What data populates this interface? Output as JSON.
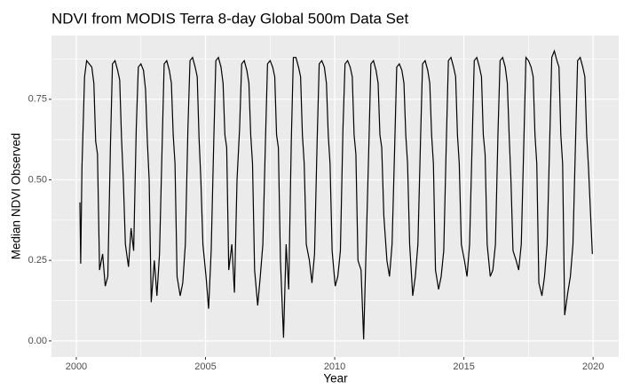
{
  "chart_data": {
    "type": "line",
    "title": "NDVI from MODIS Terra 8-day Global 500m Data Set",
    "x_label": "Year",
    "y_label": "Median NDVI Observed",
    "xlim": [
      1999.04,
      2020.99
    ],
    "ylim": [
      -0.05,
      0.948
    ],
    "xticks": [
      2000,
      2005,
      2010,
      2015,
      2020
    ],
    "xminor": [
      2002.5,
      2007.5,
      2012.5,
      2017.5
    ],
    "yticks": [
      {
        "value": 0,
        "label": "0.00"
      },
      {
        "value": 0.25,
        "label": "0.25"
      },
      {
        "value": 0.5,
        "label": "0.50"
      },
      {
        "value": 0.75,
        "label": "0.75"
      }
    ],
    "yminor": [
      0.125,
      0.375,
      0.625,
      0.875
    ],
    "grid": true,
    "series": [
      {
        "color": "#000000",
        "x": [
          2000.14,
          2000.17,
          2000.22,
          2000.32,
          2000.4,
          2000.5,
          2000.6,
          2000.68,
          2000.75,
          2000.82,
          2000.9,
          2001.02,
          2001.12,
          2001.22,
          2001.32,
          2001.4,
          2001.5,
          2001.6,
          2001.68,
          2001.75,
          2001.82,
          2001.9,
          2002.02,
          2002.12,
          2002.22,
          2002.32,
          2002.4,
          2002.5,
          2002.6,
          2002.68,
          2002.75,
          2002.82,
          2002.9,
          2003.02,
          2003.12,
          2003.22,
          2003.32,
          2003.4,
          2003.5,
          2003.6,
          2003.68,
          2003.75,
          2003.82,
          2003.9,
          2004.02,
          2004.12,
          2004.22,
          2004.32,
          2004.4,
          2004.5,
          2004.6,
          2004.68,
          2004.75,
          2004.82,
          2004.9,
          2005.02,
          2005.12,
          2005.22,
          2005.32,
          2005.4,
          2005.5,
          2005.6,
          2005.68,
          2005.75,
          2005.82,
          2005.9,
          2006.02,
          2006.12,
          2006.22,
          2006.32,
          2006.4,
          2006.5,
          2006.6,
          2006.68,
          2006.75,
          2006.82,
          2006.9,
          2007.02,
          2007.12,
          2007.22,
          2007.32,
          2007.4,
          2007.5,
          2007.6,
          2007.68,
          2007.75,
          2007.82,
          2007.9,
          2008.02,
          2008.12,
          2008.22,
          2008.32,
          2008.4,
          2008.5,
          2008.6,
          2008.68,
          2008.75,
          2008.82,
          2008.9,
          2009.02,
          2009.12,
          2009.22,
          2009.32,
          2009.4,
          2009.5,
          2009.6,
          2009.68,
          2009.75,
          2009.82,
          2009.9,
          2010.02,
          2010.12,
          2010.22,
          2010.32,
          2010.4,
          2010.5,
          2010.6,
          2010.68,
          2010.75,
          2010.82,
          2010.9,
          2011.02,
          2011.12,
          2011.22,
          2011.32,
          2011.4,
          2011.5,
          2011.6,
          2011.68,
          2011.75,
          2011.82,
          2011.9,
          2012.02,
          2012.12,
          2012.22,
          2012.32,
          2012.4,
          2012.5,
          2012.6,
          2012.68,
          2012.75,
          2012.82,
          2012.9,
          2013.02,
          2013.12,
          2013.22,
          2013.32,
          2013.4,
          2013.5,
          2013.6,
          2013.68,
          2013.75,
          2013.82,
          2013.9,
          2014.02,
          2014.12,
          2014.22,
          2014.32,
          2014.4,
          2014.5,
          2014.6,
          2014.68,
          2014.75,
          2014.82,
          2014.9,
          2015.02,
          2015.12,
          2015.22,
          2015.32,
          2015.4,
          2015.5,
          2015.6,
          2015.68,
          2015.75,
          2015.82,
          2015.9,
          2016.02,
          2016.12,
          2016.22,
          2016.32,
          2016.4,
          2016.5,
          2016.6,
          2016.68,
          2016.75,
          2016.82,
          2016.9,
          2017.02,
          2017.12,
          2017.22,
          2017.32,
          2017.4,
          2017.5,
          2017.6,
          2017.68,
          2017.75,
          2017.82,
          2017.9,
          2018.02,
          2018.12,
          2018.22,
          2018.32,
          2018.4,
          2018.5,
          2018.6,
          2018.68,
          2018.75,
          2018.82,
          2018.9,
          2019.02,
          2019.12,
          2019.22,
          2019.32,
          2019.4,
          2019.5,
          2019.6,
          2019.68,
          2019.75,
          2019.82,
          2019.97
        ],
        "values": [
          0.43,
          0.24,
          0.54,
          0.82,
          0.87,
          0.86,
          0.85,
          0.8,
          0.62,
          0.58,
          0.22,
          0.27,
          0.17,
          0.2,
          0.6,
          0.86,
          0.87,
          0.84,
          0.81,
          0.63,
          0.5,
          0.3,
          0.23,
          0.35,
          0.28,
          0.66,
          0.85,
          0.86,
          0.84,
          0.78,
          0.62,
          0.5,
          0.12,
          0.25,
          0.14,
          0.27,
          0.6,
          0.86,
          0.87,
          0.84,
          0.8,
          0.64,
          0.55,
          0.2,
          0.14,
          0.18,
          0.3,
          0.66,
          0.87,
          0.88,
          0.85,
          0.82,
          0.63,
          0.5,
          0.3,
          0.2,
          0.1,
          0.28,
          0.62,
          0.87,
          0.88,
          0.85,
          0.8,
          0.64,
          0.6,
          0.22,
          0.3,
          0.15,
          0.5,
          0.66,
          0.86,
          0.87,
          0.84,
          0.8,
          0.64,
          0.55,
          0.22,
          0.11,
          0.2,
          0.3,
          0.62,
          0.86,
          0.87,
          0.85,
          0.82,
          0.64,
          0.6,
          0.25,
          0.01,
          0.3,
          0.16,
          0.62,
          0.88,
          0.88,
          0.85,
          0.82,
          0.64,
          0.55,
          0.3,
          0.25,
          0.18,
          0.27,
          0.62,
          0.86,
          0.87,
          0.85,
          0.8,
          0.64,
          0.55,
          0.28,
          0.17,
          0.2,
          0.28,
          0.66,
          0.86,
          0.87,
          0.85,
          0.82,
          0.64,
          0.58,
          0.25,
          0.22,
          0.005,
          0.3,
          0.6,
          0.86,
          0.87,
          0.84,
          0.8,
          0.64,
          0.6,
          0.39,
          0.25,
          0.2,
          0.3,
          0.6,
          0.85,
          0.86,
          0.84,
          0.8,
          0.64,
          0.55,
          0.3,
          0.14,
          0.2,
          0.3,
          0.62,
          0.86,
          0.87,
          0.84,
          0.8,
          0.64,
          0.55,
          0.22,
          0.16,
          0.2,
          0.28,
          0.62,
          0.87,
          0.88,
          0.85,
          0.82,
          0.64,
          0.55,
          0.3,
          0.25,
          0.2,
          0.3,
          0.62,
          0.87,
          0.88,
          0.85,
          0.82,
          0.64,
          0.58,
          0.3,
          0.2,
          0.22,
          0.3,
          0.65,
          0.87,
          0.88,
          0.85,
          0.8,
          0.64,
          0.5,
          0.28,
          0.25,
          0.22,
          0.3,
          0.62,
          0.88,
          0.87,
          0.85,
          0.82,
          0.64,
          0.55,
          0.18,
          0.14,
          0.2,
          0.3,
          0.62,
          0.88,
          0.9,
          0.87,
          0.85,
          0.64,
          0.55,
          0.08,
          0.15,
          0.2,
          0.3,
          0.62,
          0.87,
          0.88,
          0.85,
          0.82,
          0.64,
          0.54,
          0.27
        ]
      }
    ]
  }
}
